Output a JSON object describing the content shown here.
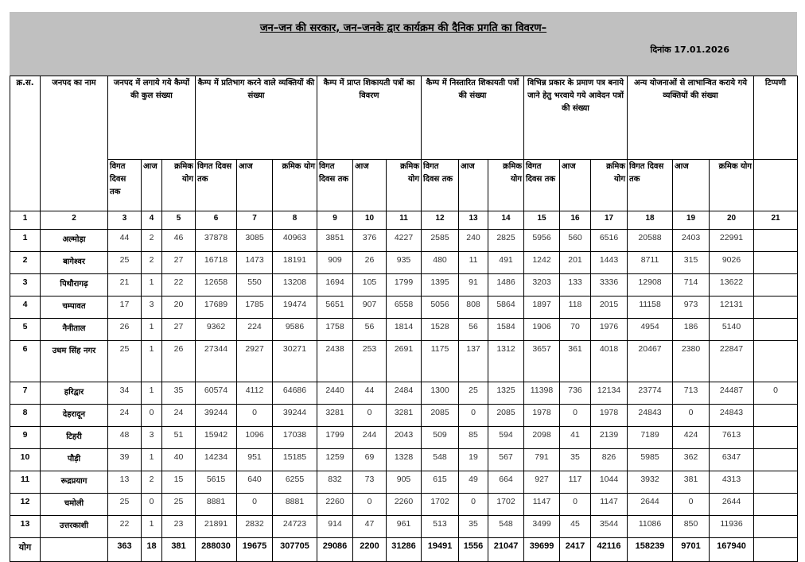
{
  "header": {
    "title": "जन–जन की सरकार, जन–जनके द्वार कार्यक्रम की दैनिक प्रगति का विवरण–",
    "date": "दिनांक 17.01.2026",
    "banner_color": "#c0c0c0"
  },
  "columns": {
    "serial": "क्र.स.",
    "district": "जनपद का नाम",
    "groups": [
      "जनपद में लगाये गये कैम्पों की कुल संख्या",
      "कैम्प में प्रतिभाग करने वाले व्यक्तियों की संख्या",
      "कैम्प में प्राप्त शिकायती पत्रों का विवरण",
      "कैम्प में निस्तारित शिकायती पत्रों की संख्या",
      "विभिन्न प्रकार के प्रमाण पत्र बनाये जाने हेतु भरवाये गये आवेदन पत्रों की संख्या",
      "अन्य योजनाओं से लाभान्वित कराये गये व्यक्तियों की संख्या"
    ],
    "remarks": "टिप्पणी",
    "sub": [
      "विगत दिवस तक",
      "आज",
      "क्रमिक योग"
    ],
    "numbers": [
      "1",
      "2",
      "3",
      "4",
      "5",
      "6",
      "7",
      "8",
      "9",
      "10",
      "11",
      "12",
      "13",
      "14",
      "15",
      "16",
      "17",
      "18",
      "19",
      "20",
      "21"
    ]
  },
  "rows": [
    {
      "sn": "1",
      "name": "अल्मोड़ा",
      "v": [
        "44",
        "2",
        "46",
        "37878",
        "3085",
        "40963",
        "3851",
        "376",
        "4227",
        "2585",
        "240",
        "2825",
        "5956",
        "560",
        "6516",
        "20588",
        "2403",
        "22991"
      ],
      "remark": ""
    },
    {
      "sn": "2",
      "name": "बागेश्वर",
      "v": [
        "25",
        "2",
        "27",
        "16718",
        "1473",
        "18191",
        "909",
        "26",
        "935",
        "480",
        "11",
        "491",
        "1242",
        "201",
        "1443",
        "8711",
        "315",
        "9026"
      ],
      "remark": ""
    },
    {
      "sn": "3",
      "name": "पिथौरागढ़",
      "v": [
        "21",
        "1",
        "22",
        "12658",
        "550",
        "13208",
        "1694",
        "105",
        "1799",
        "1395",
        "91",
        "1486",
        "3203",
        "133",
        "3336",
        "12908",
        "714",
        "13622"
      ],
      "remark": ""
    },
    {
      "sn": "4",
      "name": "चम्पावत",
      "v": [
        "17",
        "3",
        "20",
        "17689",
        "1785",
        "19474",
        "5651",
        "907",
        "6558",
        "5056",
        "808",
        "5864",
        "1897",
        "118",
        "2015",
        "11158",
        "973",
        "12131"
      ],
      "remark": ""
    },
    {
      "sn": "5",
      "name": "नैनीताल",
      "v": [
        "26",
        "1",
        "27",
        "9362",
        "224",
        "9586",
        "1758",
        "56",
        "1814",
        "1528",
        "56",
        "1584",
        "1906",
        "70",
        "1976",
        "4954",
        "186",
        "5140"
      ],
      "remark": ""
    },
    {
      "sn": "6",
      "name": "उधम सिंह नगर",
      "v": [
        "25",
        "1",
        "26",
        "27344",
        "2927",
        "30271",
        "2438",
        "253",
        "2691",
        "1175",
        "137",
        "1312",
        "3657",
        "361",
        "4018",
        "20467",
        "2380",
        "22847"
      ],
      "remark": ""
    },
    {
      "sn": "7",
      "name": "हरिद्वार",
      "v": [
        "34",
        "1",
        "35",
        "60574",
        "4112",
        "64686",
        "2440",
        "44",
        "2484",
        "1300",
        "25",
        "1325",
        "11398",
        "736",
        "12134",
        "23774",
        "713",
        "24487"
      ],
      "remark": "0"
    },
    {
      "sn": "8",
      "name": "देहरादून",
      "v": [
        "24",
        "0",
        "24",
        "39244",
        "0",
        "39244",
        "3281",
        "0",
        "3281",
        "2085",
        "0",
        "2085",
        "1978",
        "0",
        "1978",
        "24843",
        "0",
        "24843"
      ],
      "remark": ""
    },
    {
      "sn": "9",
      "name": "टिहरी",
      "v": [
        "48",
        "3",
        "51",
        "15942",
        "1096",
        "17038",
        "1799",
        "244",
        "2043",
        "509",
        "85",
        "594",
        "2098",
        "41",
        "2139",
        "7189",
        "424",
        "7613"
      ],
      "remark": ""
    },
    {
      "sn": "10",
      "name": "पौड़ी",
      "v": [
        "39",
        "1",
        "40",
        "14234",
        "951",
        "15185",
        "1259",
        "69",
        "1328",
        "548",
        "19",
        "567",
        "791",
        "35",
        "826",
        "5985",
        "362",
        "6347"
      ],
      "remark": ""
    },
    {
      "sn": "11",
      "name": "रूद्रप्रयाग",
      "v": [
        "13",
        "2",
        "15",
        "5615",
        "640",
        "6255",
        "832",
        "73",
        "905",
        "615",
        "49",
        "664",
        "927",
        "117",
        "1044",
        "3932",
        "381",
        "4313"
      ],
      "remark": ""
    },
    {
      "sn": "12",
      "name": "चमोली",
      "v": [
        "25",
        "0",
        "25",
        "8881",
        "0",
        "8881",
        "2260",
        "0",
        "2260",
        "1702",
        "0",
        "1702",
        "1147",
        "0",
        "1147",
        "2644",
        "0",
        "2644"
      ],
      "remark": ""
    },
    {
      "sn": "13",
      "name": "उत्तरकाशी",
      "v": [
        "22",
        "1",
        "23",
        "21891",
        "2832",
        "24723",
        "914",
        "47",
        "961",
        "513",
        "35",
        "548",
        "3499",
        "45",
        "3544",
        "11086",
        "850",
        "11936"
      ],
      "remark": ""
    }
  ],
  "total": {
    "label": "योग",
    "v": [
      "363",
      "18",
      "381",
      "288030",
      "19675",
      "307705",
      "29086",
      "2200",
      "31286",
      "19491",
      "1556",
      "21047",
      "39699",
      "2417",
      "42116",
      "158239",
      "9701",
      "167940"
    ]
  }
}
